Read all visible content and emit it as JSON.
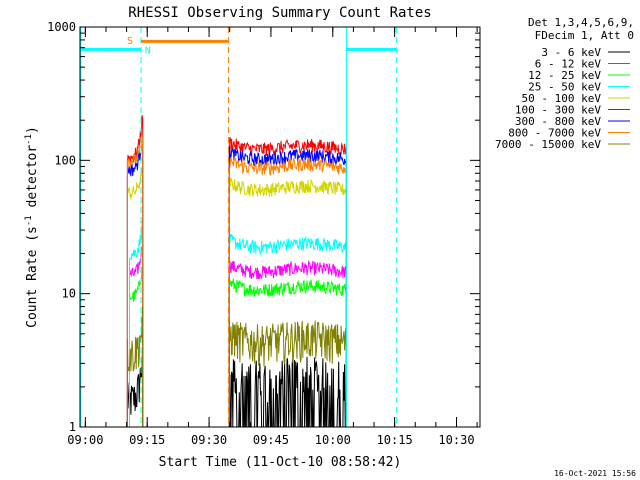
{
  "chart_data": {
    "type": "line",
    "title": "RHESSI Observing Summary Count Rates",
    "xlabel": "Start Time (11-Oct-10 08:58:42)",
    "ylabel": "Count Rate (s⁻¹ detector⁻¹)",
    "ylabel_main": "Count Rate (s",
    "ylabel_sup1": "-1",
    "ylabel_mid": " detector",
    "ylabel_sup2": "-1",
    "ylabel_end": ")",
    "y_scale": "log",
    "ylim": [
      1,
      1000
    ],
    "xlim_minutes": [
      0,
      97
    ],
    "x_ticks": [
      {
        "label": "09:00",
        "t": 1.3
      },
      {
        "label": "09:15",
        "t": 16.3
      },
      {
        "label": "09:30",
        "t": 31.3
      },
      {
        "label": "09:45",
        "t": 46.3
      },
      {
        "label": "10:00",
        "t": 61.3
      },
      {
        "label": "10:15",
        "t": 76.3
      },
      {
        "label": "10:30",
        "t": 91.3
      }
    ],
    "y_ticks": [
      {
        "label": "1",
        "v": 1
      },
      {
        "label": "10",
        "v": 10
      },
      {
        "label": "100",
        "v": 100
      },
      {
        "label": "1000",
        "v": 1000
      }
    ],
    "legend_header": [
      "Det 1,3,4,5,6,9,",
      "FDecim 1, Att 0"
    ],
    "legend_placement": "right",
    "series": [
      {
        "name": "3 - 6 keV",
        "color": "#000000",
        "segments": [
          {
            "t0": 11.5,
            "t1": 15.2,
            "base": 1.6,
            "spike_end": 3.5
          },
          {
            "t0": 36.2,
            "t1": 64.6,
            "base": 2.4,
            "low": 1.0
          }
        ]
      },
      {
        "name": "6 - 12 keV",
        "color": "#ff00ff",
        "segments": [
          {
            "t0": 12.0,
            "t1": 15.2,
            "base": 14,
            "spike_end": 25
          },
          {
            "t0": 36.2,
            "t1": 64.6,
            "base": 15
          }
        ]
      },
      {
        "name": "12 - 25 keV",
        "color": "#00ff00",
        "segments": [
          {
            "t0": 12.0,
            "t1": 15.2,
            "base": 9.5,
            "spike_end": 18
          },
          {
            "t0": 36.2,
            "t1": 64.6,
            "base": 11
          }
        ]
      },
      {
        "name": "25 - 50 keV",
        "color": "#00ffff",
        "segments": [
          {
            "t0": 12.0,
            "t1": 15.2,
            "base": 20,
            "spike_end": 35
          },
          {
            "t0": 36.2,
            "t1": 64.6,
            "base": 23
          }
        ]
      },
      {
        "name": "50 - 100 keV",
        "color": "#d4d400",
        "segments": [
          {
            "t0": 11.5,
            "t1": 15.2,
            "base": 57,
            "spike_end": 90
          },
          {
            "t0": 36.2,
            "t1": 64.6,
            "base": 62
          }
        ]
      },
      {
        "name": "100 - 300 keV",
        "color": "#ff0000",
        "segments": [
          {
            "t0": 11.5,
            "t1": 15.2,
            "base": 105,
            "spike_end": 220
          },
          {
            "t0": 36.2,
            "t1": 64.6,
            "base": 125
          }
        ]
      },
      {
        "name": "300 - 800 keV",
        "color": "#0000ff",
        "segments": [
          {
            "t0": 11.5,
            "t1": 15.2,
            "base": 85,
            "spike_end": 160
          },
          {
            "t0": 36.2,
            "t1": 64.6,
            "base": 105
          }
        ]
      },
      {
        "name": "800 - 7000 keV",
        "color": "#ff8000",
        "segments": [
          {
            "t0": 11.5,
            "t1": 15.2,
            "base": 100,
            "spike_end": 140
          },
          {
            "t0": 36.2,
            "t1": 64.6,
            "base": 90
          }
        ]
      },
      {
        "name": "7000 - 15000 keV",
        "color": "#808000",
        "segments": [
          {
            "t0": 11.5,
            "t1": 15.2,
            "base": 3.6,
            "spike_end": 6
          },
          {
            "t0": 36.2,
            "t1": 64.6,
            "base": 4.5
          }
        ]
      }
    ],
    "annotations": [
      {
        "label": "S",
        "color": "#ff8000",
        "t": 11.4,
        "v": 800
      },
      {
        "label": "N",
        "color": "#00ffff",
        "t": 15.7,
        "v": 680
      }
    ],
    "flag_bars": [
      {
        "color": "#00ffff",
        "v": 680,
        "t0": 0,
        "t1": 14.8
      },
      {
        "color": "#ff8000",
        "v": 780,
        "t0": 14.8,
        "t1": 36.0
      },
      {
        "color": "#00ffff",
        "v": 680,
        "t0": 64.6,
        "t1": 76.8
      }
    ],
    "markers": [
      {
        "color": "#00ffff",
        "t": 0.2,
        "dash": false
      },
      {
        "color": "#00ffff",
        "t": 14.8,
        "dash": true
      },
      {
        "color": "#ff8000",
        "t": 36.0,
        "dash": true
      },
      {
        "color": "#00ffff",
        "t": 64.6,
        "dash": false
      },
      {
        "color": "#00ffff",
        "t": 76.8,
        "dash": true
      }
    ]
  },
  "footer": {
    "timestamp": "16-Oct-2021 15:56"
  }
}
